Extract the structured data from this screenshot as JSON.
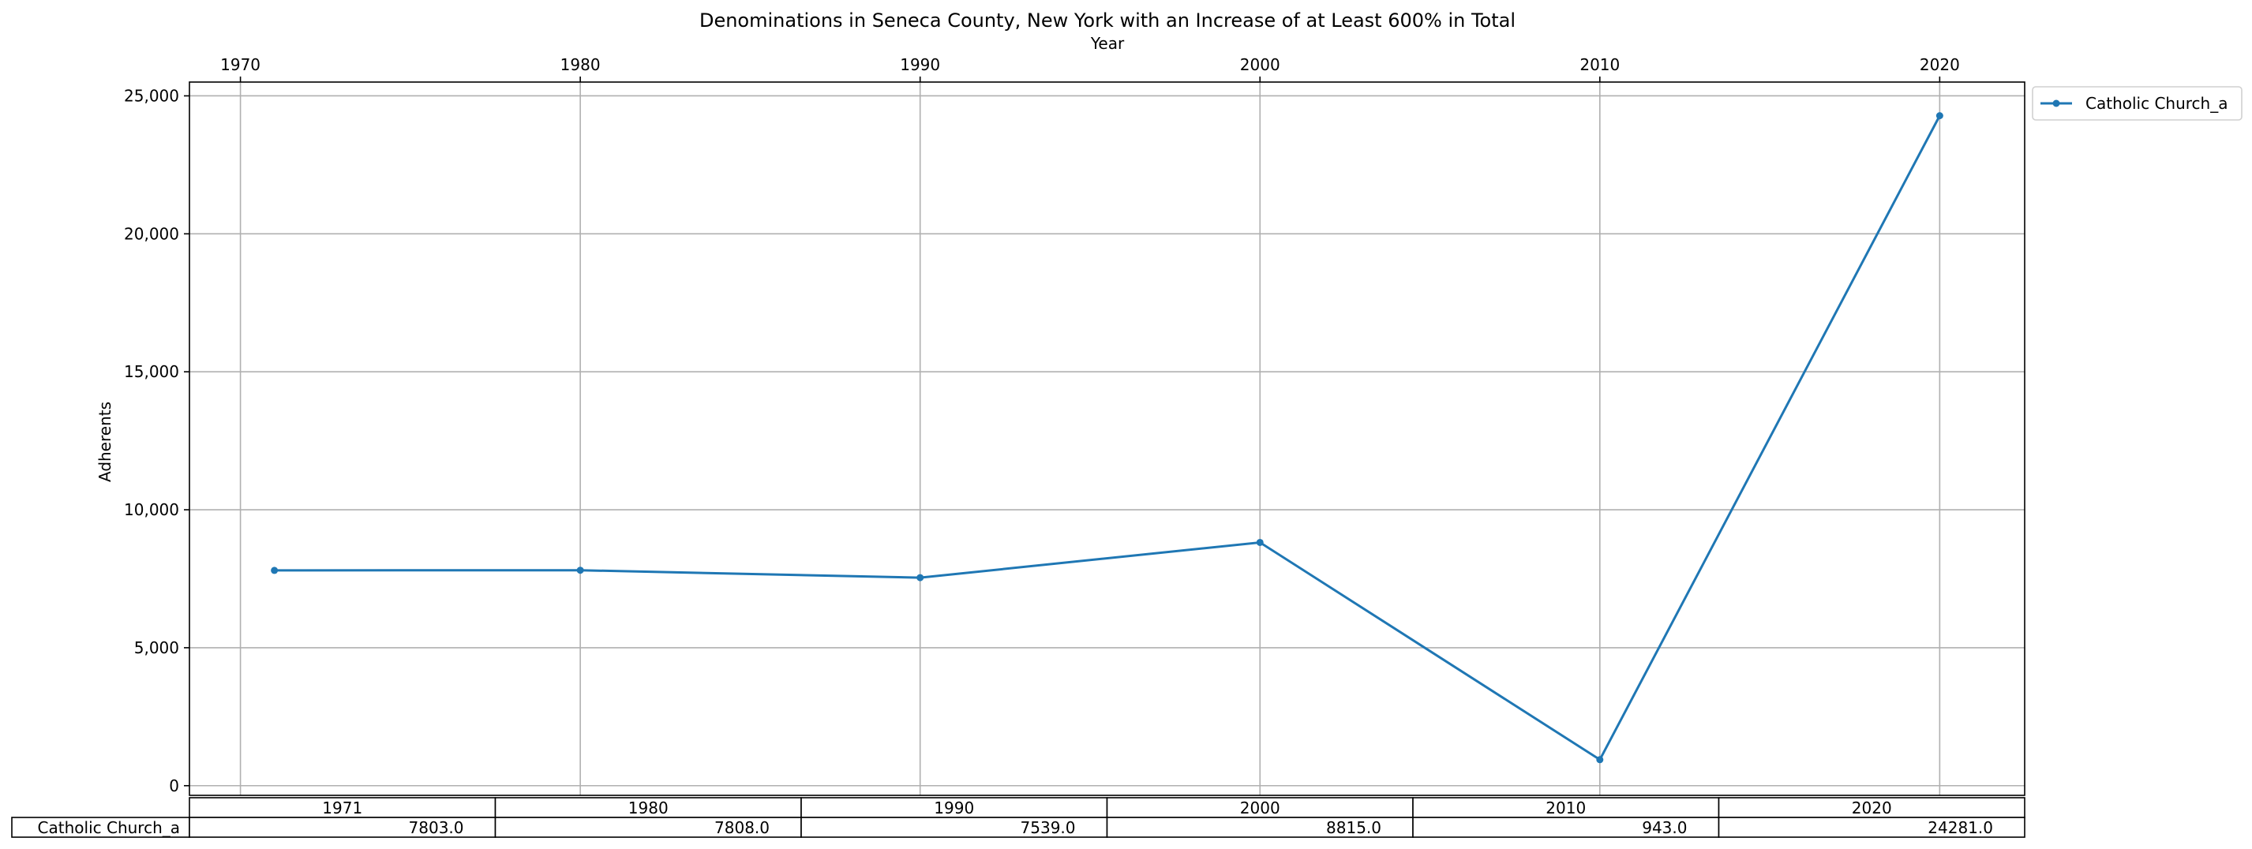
{
  "chart_data": {
    "type": "line",
    "title": "Denominations in Seneca County, New York with an Increase of at Least 600% in Total",
    "xlabel": "Year",
    "ylabel": "Adherents",
    "x_ticks": [
      1970,
      1980,
      1990,
      2000,
      2010,
      2020
    ],
    "y_ticks": [
      0,
      5000,
      10000,
      15000,
      20000,
      25000
    ],
    "y_tick_labels": [
      "0",
      "5,000",
      "10,000",
      "15,000",
      "20,000",
      "25,000"
    ],
    "xlim": [
      1968.5,
      2022.5
    ],
    "ylim": [
      -350,
      25500
    ],
    "grid": true,
    "legend_position": "outside-top-right",
    "series": [
      {
        "name": "Catholic Church_a",
        "color": "#1f77b4",
        "marker": "dot",
        "x": [
          1971,
          1980,
          1990,
          2000,
          2010,
          2020
        ],
        "y": [
          7803,
          7808,
          7539,
          8815,
          943,
          24281
        ]
      }
    ],
    "table": {
      "columns": [
        "1971",
        "1980",
        "1990",
        "2000",
        "2010",
        "2020"
      ],
      "rows": [
        {
          "label": "Catholic Church_a",
          "values": [
            "7803.0",
            "7808.0",
            "7539.0",
            "8815.0",
            "943.0",
            "24281.0"
          ]
        }
      ]
    }
  }
}
